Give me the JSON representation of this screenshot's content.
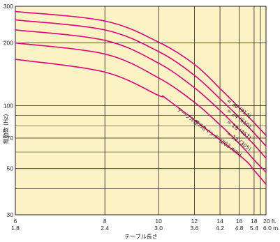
{
  "chart_data": {
    "type": "line",
    "xlabel": "テーブル長さ",
    "ylabel": "振動数 (Hz)",
    "x_scale": "reciprocal",
    "y_scale": "log",
    "xlim_ft": [
      6,
      20
    ],
    "ylim": [
      30,
      300
    ],
    "grid": true,
    "colors": {
      "plot_bg": "#fbf3c4",
      "grid": "#231f20",
      "curve": "#e6007e",
      "text": "#231f20"
    },
    "x_ticks_ft": [
      "6",
      "8",
      "10",
      "12",
      "14",
      "16",
      "18",
      "20 ft."
    ],
    "x_ticks_m": [
      "1.8",
      "2.4",
      "3.0",
      "3.6",
      "4.2",
      "4.8",
      "5.4",
      "6.0 m."
    ],
    "y_ticks": [
      "300",
      "200",
      "100",
      "70",
      "50",
      "30"
    ],
    "y_minor_gridlines": [
      40,
      60,
      80,
      90
    ],
    "x_extra_gridlines_ft": [
      19
    ],
    "series": [
      {
        "name": "= 36 (914)",
        "x_ft": [
          6,
          8,
          10,
          12,
          14,
          16,
          18,
          20
        ],
        "y": [
          283,
          255,
          202,
          158,
          121,
          98,
          83,
          72
        ]
      },
      {
        "name": "= 24 (610)",
        "x_ft": [
          6,
          8,
          10,
          12,
          14,
          16,
          18,
          20
        ],
        "y": [
          258,
          231,
          182,
          140,
          108,
          88,
          74,
          64
        ]
      },
      {
        "name": "= 18 (457)",
        "x_ft": [
          6,
          8,
          10,
          12,
          14,
          16,
          18,
          20
        ],
        "y": [
          231,
          206,
          160,
          122,
          95,
          77,
          65,
          56
        ]
      },
      {
        "name": "= 12 (305)",
        "x_ft": [
          6,
          8,
          10,
          12,
          14,
          16,
          18,
          20
        ],
        "y": [
          200,
          177,
          136,
          104,
          81,
          66,
          55,
          48
        ]
      },
      {
        "name": "テーブル厚み8インチ (203 mm)",
        "x_ft": [
          6,
          8,
          10,
          10.5,
          16,
          18,
          20
        ],
        "y": [
          167,
          145,
          112,
          106,
          58,
          49,
          42
        ]
      }
    ]
  }
}
